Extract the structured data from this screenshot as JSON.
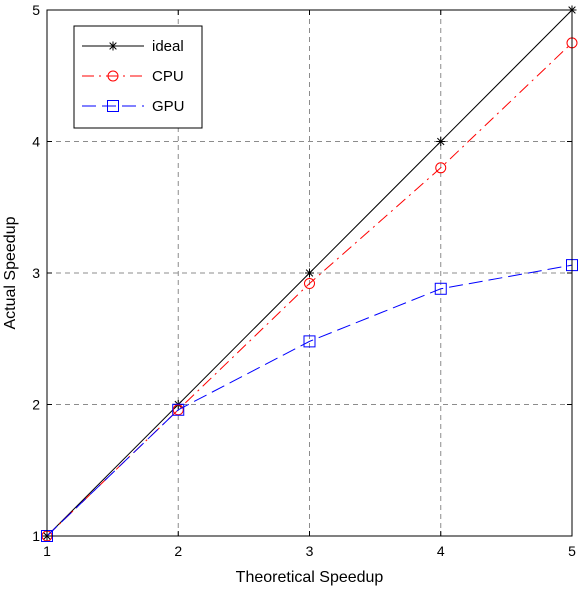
{
  "chart_data": {
    "type": "line",
    "title": "",
    "xlabel": "Theoretical Speedup",
    "ylabel": "Actual Speedup",
    "xlim": [
      1,
      5
    ],
    "ylim": [
      1,
      5
    ],
    "xticks": [
      "1",
      "2",
      "3",
      "4",
      "5"
    ],
    "yticks": [
      "1",
      "2",
      "3",
      "4",
      "5"
    ],
    "grid": true,
    "legend_position": "top-left",
    "x": [
      1,
      2,
      3,
      4,
      5
    ],
    "series": [
      {
        "name": "ideal",
        "values": [
          1,
          2,
          3,
          4,
          5
        ],
        "color": "#000000",
        "marker": "star",
        "line_style": "solid"
      },
      {
        "name": "CPU",
        "values": [
          1,
          1.96,
          2.92,
          3.8,
          4.75
        ],
        "color": "#ff0000",
        "marker": "circle",
        "line_style": "dash-dot"
      },
      {
        "name": "GPU",
        "values": [
          1,
          1.96,
          2.48,
          2.88,
          3.06
        ],
        "color": "#0000ff",
        "marker": "square",
        "line_style": "dashed"
      }
    ]
  }
}
